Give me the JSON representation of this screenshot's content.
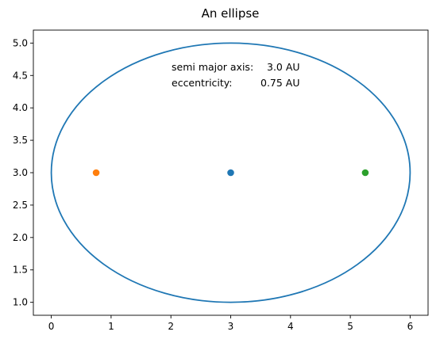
{
  "chart_data": {
    "type": "scatter",
    "title": "An ellipse",
    "xlabel": "",
    "ylabel": "",
    "xlim": [
      -0.3,
      6.3
    ],
    "ylim": [
      0.8,
      5.2
    ],
    "grid": false,
    "x_ticks": [
      "0",
      "1",
      "2",
      "3",
      "4",
      "5",
      "6"
    ],
    "y_ticks": [
      "1.0",
      "1.5",
      "2.0",
      "2.5",
      "3.0",
      "3.5",
      "4.0",
      "4.5",
      "5.0"
    ],
    "ellipse": {
      "center": [
        3.0,
        3.0
      ],
      "semi_axis_x": 3.0,
      "semi_axis_y": 2.0,
      "color": "#1f77b4"
    },
    "points": [
      {
        "x": 3.0,
        "y": 3.0,
        "color": "#1f77b4"
      },
      {
        "x": 0.75,
        "y": 3.0,
        "color": "#ff7f0e"
      },
      {
        "x": 5.25,
        "y": 3.0,
        "color": "#2ca02c"
      }
    ],
    "annotations": {
      "line1_label": "semi major axis:",
      "line1_value": "3.0 AU",
      "line2_label": "eccentricity:",
      "line2_value": "0.75 AU"
    }
  }
}
